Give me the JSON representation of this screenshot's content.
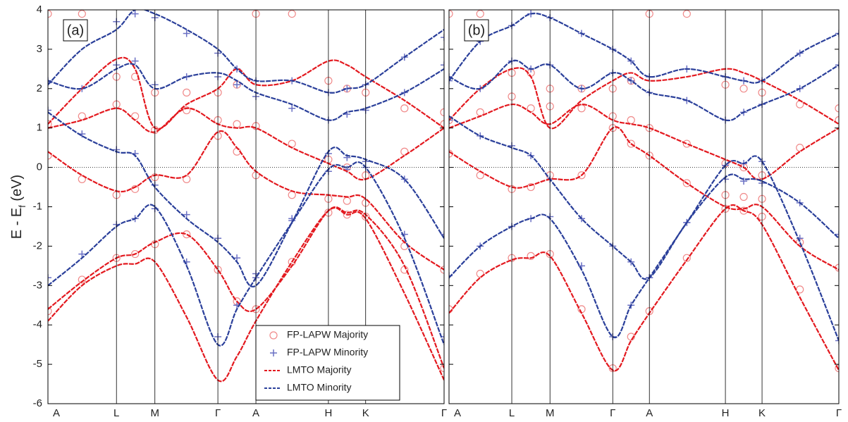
{
  "chart_data": [
    {
      "type": "line",
      "panel_label": "(a)",
      "y_label": {
        "main": "E - E",
        "sub": "f",
        "unit": " (eV)"
      },
      "xlim": [
        0,
        1
      ],
      "ylim": [
        -6,
        4
      ],
      "xticks": [
        {
          "value": 0,
          "label": "A"
        },
        {
          "value": 0.173,
          "label": "L"
        },
        {
          "value": 0.27,
          "label": "M"
        },
        {
          "value": 0.429,
          "label": "Γ"
        },
        {
          "value": 0.525,
          "label": "A"
        },
        {
          "value": 0.708,
          "label": "H"
        },
        {
          "value": 0.802,
          "label": "K"
        },
        {
          "value": 1,
          "label": "Γ"
        }
      ],
      "yticks": [
        -6,
        -5,
        -4,
        -3,
        -2,
        -1,
        0,
        1,
        2,
        3,
        4
      ],
      "ytick_labels": true,
      "fermi_level": 0,
      "legend": "lower center",
      "x": [
        0,
        0.086,
        0.173,
        0.22,
        0.27,
        0.35,
        0.429,
        0.477,
        0.525,
        0.616,
        0.708,
        0.755,
        0.802,
        0.9,
        1
      ],
      "series": [
        {
          "name": "FP-LAPW Majority",
          "color": "#f08a8a",
          "marker": "circle",
          "bands": [
            [
              -3.65,
              -2.85,
              -2.3,
              -2.2,
              -1.95,
              -1.7,
              -2.6,
              -3.4,
              -3.6,
              -2.4,
              -1.15,
              -1.2,
              -1.25,
              -2.6,
              -5.1
            ],
            [
              0.3,
              -0.3,
              -0.7,
              -0.55,
              -0.25,
              -0.3,
              0.8,
              0.4,
              -0.2,
              -0.7,
              -0.8,
              -0.85,
              -0.9,
              -2.0,
              -2.6
            ],
            [
              1.1,
              1.3,
              1.6,
              1.3,
              0.95,
              1.45,
              1.2,
              1.1,
              1.05,
              0.6,
              0.2,
              0.0,
              -0.2,
              0.4,
              1.1
            ],
            [
              3.9,
              3.9,
              2.3,
              2.3,
              1.9,
              1.9,
              1.9,
              2.1,
              3.9,
              3.9,
              2.2,
              2.0,
              1.9,
              1.5,
              1.4
            ]
          ]
        },
        {
          "name": "FP-LAPW Minority",
          "color": "#6a70c4",
          "marker": "plus",
          "bands": [
            [
              -2.8,
              -2.2,
              -1.45,
              -1.3,
              -1.05,
              -2.4,
              -4.3,
              -3.5,
              -2.7,
              -1.35,
              -0.1,
              -0.05,
              0.0,
              -1.7,
              -4.3
            ],
            [
              1.45,
              0.85,
              0.45,
              0.35,
              -0.45,
              -1.2,
              -1.8,
              -2.3,
              -2.8,
              -1.3,
              0.35,
              0.25,
              0.15,
              -0.3,
              -1.7
            ],
            [
              2.2,
              2.0,
              2.6,
              2.7,
              2.1,
              2.3,
              2.3,
              2.1,
              1.8,
              1.5,
              1.2,
              1.35,
              1.45,
              1.9,
              2.6
            ],
            [
              2.15,
              3.3,
              3.7,
              3.9,
              3.8,
              3.4,
              2.9,
              2.5,
              2.2,
              2.2,
              1.9,
              2.0,
              2.1,
              2.8,
              3.3
            ]
          ]
        },
        {
          "name": "LMTO Majority",
          "color": "#e3191f",
          "dash": "dashed",
          "bands": [
            [
              -3.9,
              -3.0,
              -2.5,
              -2.45,
              -2.4,
              -3.8,
              -5.4,
              -4.8,
              -3.9,
              -2.4,
              -1.1,
              -1.2,
              -1.3,
              -3.2,
              -5.4
            ],
            [
              0.4,
              -0.2,
              -0.6,
              -0.5,
              -0.2,
              -0.2,
              0.9,
              0.5,
              -0.1,
              -0.6,
              -0.7,
              -0.75,
              -0.8,
              -1.9,
              -2.6
            ],
            [
              1.0,
              1.2,
              1.5,
              1.2,
              0.9,
              1.5,
              1.1,
              1.0,
              1.0,
              0.5,
              0.1,
              -0.1,
              -0.3,
              0.3,
              1.0
            ],
            [
              1.1,
              2.0,
              2.75,
              2.5,
              1.0,
              1.6,
              2.0,
              2.5,
              2.1,
              2.2,
              2.7,
              2.6,
              2.3,
              1.7,
              1.0
            ],
            [
              -3.6,
              -2.9,
              -2.3,
              -2.2,
              -1.9,
              -1.7,
              -2.6,
              -3.4,
              -3.6,
              -2.5,
              -1.1,
              -1.15,
              -1.2,
              -2.5,
              -5.1
            ]
          ]
        },
        {
          "name": "LMTO Minority",
          "color": "#2a3f9a",
          "dash": "dashed",
          "bands": [
            [
              -3.0,
              -2.3,
              -1.5,
              -1.3,
              -1.0,
              -2.5,
              -4.5,
              -3.6,
              -2.8,
              -1.4,
              -0.05,
              0.0,
              0.0,
              -1.8,
              -4.5
            ],
            [
              1.4,
              0.8,
              0.4,
              0.3,
              -0.5,
              -1.3,
              -1.9,
              -2.4,
              -3.0,
              -1.4,
              0.4,
              0.3,
              0.2,
              -0.3,
              -1.8
            ],
            [
              2.2,
              2.0,
              2.5,
              2.6,
              2.0,
              2.3,
              2.4,
              2.2,
              1.9,
              1.6,
              1.2,
              1.4,
              1.5,
              1.9,
              2.5
            ],
            [
              2.1,
              3.0,
              3.5,
              4.0,
              3.9,
              3.5,
              3.0,
              2.5,
              2.2,
              2.2,
              1.9,
              2.0,
              2.1,
              2.8,
              3.5
            ]
          ]
        }
      ]
    },
    {
      "type": "line",
      "panel_label": "(b)",
      "xlim": [
        0,
        1
      ],
      "ylim": [
        -6,
        4
      ],
      "xticks": [
        {
          "value": 0,
          "label": "A"
        },
        {
          "value": 0.161,
          "label": "L"
        },
        {
          "value": 0.259,
          "label": "M"
        },
        {
          "value": 0.42,
          "label": "Γ"
        },
        {
          "value": 0.514,
          "label": "A"
        },
        {
          "value": 0.709,
          "label": "H"
        },
        {
          "value": 0.803,
          "label": "K"
        },
        {
          "value": 1,
          "label": "Γ"
        }
      ],
      "yticks": [
        -6,
        -5,
        -4,
        -3,
        -2,
        -1,
        0,
        1,
        2,
        3,
        4
      ],
      "ytick_labels": false,
      "fermi_level": 0,
      "x": [
        0,
        0.08,
        0.161,
        0.21,
        0.259,
        0.34,
        0.42,
        0.467,
        0.514,
        0.61,
        0.709,
        0.756,
        0.803,
        0.9,
        1
      ],
      "series": [
        {
          "name": "FP-LAPW Majority",
          "color": "#f08a8a",
          "marker": "circle",
          "bands": [
            [
              -3.6,
              -2.7,
              -2.3,
              -2.25,
              -2.2,
              -3.6,
              -5.1,
              -4.3,
              -3.65,
              -2.3,
              -1.05,
              -1.1,
              -1.25,
              -3.1,
              -5.1
            ],
            [
              0.35,
              -0.2,
              -0.55,
              -0.5,
              -0.2,
              -0.2,
              1.0,
              0.6,
              0.3,
              -0.4,
              -0.7,
              -0.75,
              -0.8,
              -1.9,
              -2.55
            ],
            [
              1.2,
              1.4,
              1.8,
              1.5,
              1.55,
              1.5,
              1.3,
              1.2,
              1.0,
              0.6,
              0.1,
              0.0,
              -0.2,
              0.5,
              1.2
            ],
            [
              3.9,
              3.9,
              2.4,
              2.4,
              2.0,
              2.0,
              2.0,
              2.2,
              3.9,
              3.9,
              2.1,
              2.0,
              1.9,
              1.6,
              1.5
            ]
          ]
        },
        {
          "name": "FP-LAPW Minority",
          "color": "#6a70c4",
          "marker": "plus",
          "bands": [
            [
              -2.75,
              -2.0,
              -1.5,
              -1.3,
              -1.25,
              -2.5,
              -4.3,
              -3.5,
              -2.8,
              -1.4,
              0.05,
              0.1,
              0.15,
              -1.8,
              -4.4
            ],
            [
              1.2,
              0.8,
              0.55,
              0.3,
              -0.3,
              -1.3,
              -2.0,
              -2.4,
              -2.8,
              -1.4,
              -0.3,
              -0.35,
              -0.4,
              -0.9,
              -1.7
            ],
            [
              2.3,
              2.0,
              2.7,
              2.5,
              2.6,
              2.0,
              2.4,
              2.2,
              1.9,
              1.7,
              1.2,
              1.4,
              1.6,
              2.0,
              2.6
            ],
            [
              2.2,
              3.2,
              3.6,
              3.9,
              3.8,
              3.4,
              3.0,
              2.7,
              2.3,
              2.5,
              2.3,
              2.2,
              2.2,
              2.9,
              3.4
            ]
          ]
        },
        {
          "name": "LMTO Majority",
          "color": "#e3191f",
          "dash": "dashed",
          "bands": [
            [
              -3.7,
              -2.8,
              -2.35,
              -2.3,
              -2.25,
              -3.7,
              -5.15,
              -4.4,
              -3.7,
              -2.35,
              -1.05,
              -1.1,
              -1.45,
              -3.3,
              -5.15
            ],
            [
              0.4,
              -0.1,
              -0.5,
              -0.45,
              -0.3,
              -0.2,
              1.0,
              0.6,
              0.3,
              -0.4,
              -1.0,
              -1.05,
              -1.0,
              -2.0,
              -2.6
            ],
            [
              1.0,
              1.3,
              1.6,
              1.4,
              1.1,
              1.6,
              1.2,
              1.1,
              1.0,
              0.6,
              0.2,
              0.0,
              -0.3,
              0.4,
              1.0
            ],
            [
              1.2,
              2.0,
              2.5,
              2.3,
              1.0,
              1.7,
              2.2,
              2.4,
              2.2,
              2.3,
              2.5,
              2.4,
              2.2,
              1.7,
              1.1
            ]
          ]
        },
        {
          "name": "LMTO Minority",
          "color": "#2a3f9a",
          "dash": "dashed",
          "bands": [
            [
              -2.8,
              -2.0,
              -1.5,
              -1.3,
              -1.3,
              -2.6,
              -4.3,
              -3.5,
              -2.8,
              -1.4,
              0.05,
              0.1,
              0.15,
              -1.9,
              -4.4
            ],
            [
              1.3,
              0.8,
              0.5,
              0.3,
              -0.3,
              -1.3,
              -2.0,
              -2.4,
              -2.8,
              -1.4,
              -0.25,
              -0.3,
              -0.35,
              -0.9,
              -1.8
            ],
            [
              2.3,
              2.0,
              2.7,
              2.5,
              2.6,
              2.0,
              2.4,
              2.2,
              1.9,
              1.7,
              1.2,
              1.4,
              1.6,
              2.0,
              2.6
            ],
            [
              2.2,
              3.2,
              3.6,
              3.9,
              3.8,
              3.4,
              3.0,
              2.7,
              2.3,
              2.5,
              2.3,
              2.2,
              2.2,
              2.9,
              3.4
            ]
          ]
        }
      ]
    }
  ]
}
